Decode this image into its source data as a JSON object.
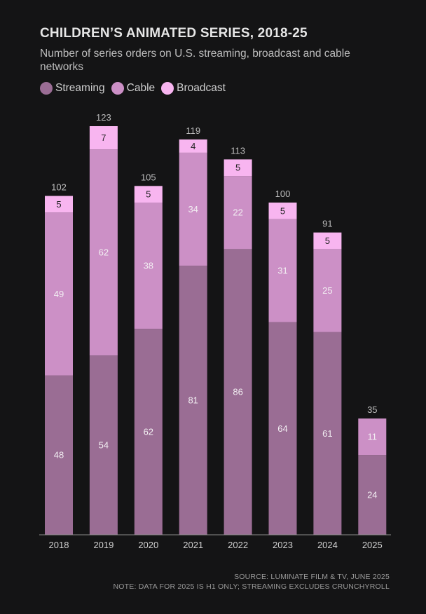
{
  "chart_data": {
    "type": "bar",
    "stacked": true,
    "title": "CHILDREN’S ANIMATED SERIES, 2018-25",
    "subtitle": "Number of series orders on U.S. streaming, broadcast and cable networks",
    "categories": [
      "2018",
      "2019",
      "2020",
      "2021",
      "2022",
      "2023",
      "2024",
      "2025"
    ],
    "series": [
      {
        "name": "Streaming",
        "color": "#9a6d94",
        "values": [
          48,
          54,
          62,
          81,
          86,
          64,
          61,
          24
        ]
      },
      {
        "name": "Cable",
        "color": "#cc90c6",
        "values": [
          49,
          62,
          38,
          34,
          22,
          31,
          25,
          11
        ]
      },
      {
        "name": "Broadcast",
        "color": "#f8b5f0",
        "values": [
          5,
          7,
          5,
          4,
          5,
          5,
          5,
          null
        ]
      }
    ],
    "totals": [
      102,
      123,
      105,
      119,
      113,
      100,
      91,
      35
    ],
    "ylim": [
      0,
      123
    ],
    "grid": false,
    "legend_position": "top-left"
  },
  "footer": {
    "source": "SOURCE: LUMINATE FILM & TV, JUNE 2025",
    "note": "NOTE: DATA FOR 2025 IS H1 ONLY; STREAMING EXCLUDES CRUNCHYROLL"
  }
}
